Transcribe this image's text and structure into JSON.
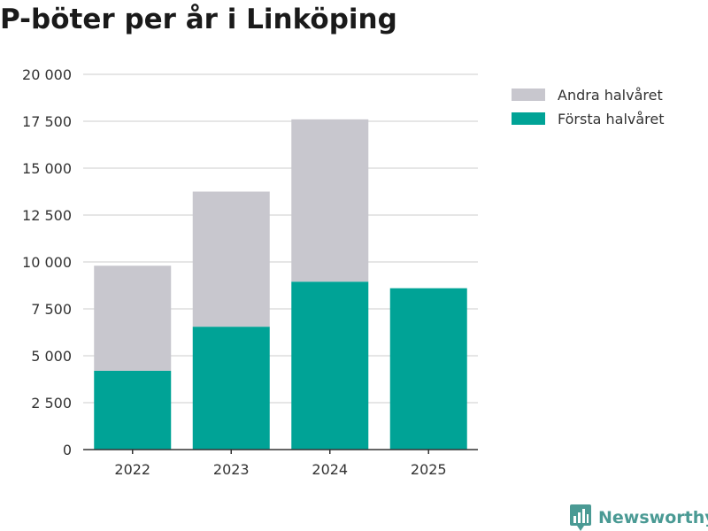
{
  "chart_data": {
    "type": "bar",
    "stacked": true,
    "title": "P-böter per år i Linköping",
    "xlabel": "",
    "ylabel": "",
    "ylim": [
      0,
      20000
    ],
    "yticks": [
      0,
      2500,
      5000,
      7500,
      10000,
      12500,
      15000,
      17500,
      20000
    ],
    "ytick_labels": [
      "0",
      "2 500",
      "5 000",
      "7 500",
      "10 000",
      "12 500",
      "15 000",
      "17 500",
      "20 000"
    ],
    "categories": [
      "2022",
      "2023",
      "2024",
      "2025"
    ],
    "series": [
      {
        "name": "Första halvåret",
        "color": "#00a396",
        "values": [
          4200,
          6550,
          8950,
          8600
        ]
      },
      {
        "name": "Andra halvåret",
        "color": "#c8c7ce",
        "values": [
          5600,
          7200,
          8650,
          0
        ]
      }
    ],
    "legend": [
      {
        "label": "Andra halvåret",
        "color": "#c8c7ce"
      },
      {
        "label": "Första halvåret",
        "color": "#00a396"
      }
    ],
    "legend_position": "top-right",
    "grid": true
  },
  "brand": {
    "name": "Newsworthy",
    "icon": "newsworthy-logo-icon",
    "color": "#4a9a94"
  }
}
